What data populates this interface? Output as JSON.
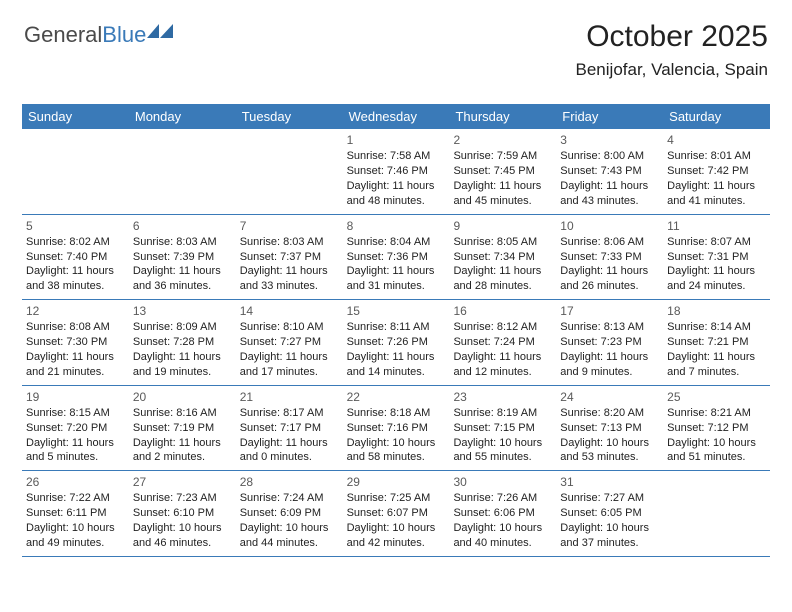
{
  "logo": {
    "text1": "General",
    "text2": "Blue"
  },
  "header": {
    "title": "October 2025",
    "location": "Benijofar, Valencia, Spain"
  },
  "colors": {
    "header_bg": "#3a7ab8",
    "header_fg": "#ffffff",
    "border": "#3a7ab8"
  },
  "daynames": [
    "Sunday",
    "Monday",
    "Tuesday",
    "Wednesday",
    "Thursday",
    "Friday",
    "Saturday"
  ],
  "weeks": [
    [
      {
        "day": "",
        "sunrise": "",
        "sunset": "",
        "daylight1": "",
        "daylight2": ""
      },
      {
        "day": "",
        "sunrise": "",
        "sunset": "",
        "daylight1": "",
        "daylight2": ""
      },
      {
        "day": "",
        "sunrise": "",
        "sunset": "",
        "daylight1": "",
        "daylight2": ""
      },
      {
        "day": "1",
        "sunrise": "Sunrise: 7:58 AM",
        "sunset": "Sunset: 7:46 PM",
        "daylight1": "Daylight: 11 hours",
        "daylight2": "and 48 minutes."
      },
      {
        "day": "2",
        "sunrise": "Sunrise: 7:59 AM",
        "sunset": "Sunset: 7:45 PM",
        "daylight1": "Daylight: 11 hours",
        "daylight2": "and 45 minutes."
      },
      {
        "day": "3",
        "sunrise": "Sunrise: 8:00 AM",
        "sunset": "Sunset: 7:43 PM",
        "daylight1": "Daylight: 11 hours",
        "daylight2": "and 43 minutes."
      },
      {
        "day": "4",
        "sunrise": "Sunrise: 8:01 AM",
        "sunset": "Sunset: 7:42 PM",
        "daylight1": "Daylight: 11 hours",
        "daylight2": "and 41 minutes."
      }
    ],
    [
      {
        "day": "5",
        "sunrise": "Sunrise: 8:02 AM",
        "sunset": "Sunset: 7:40 PM",
        "daylight1": "Daylight: 11 hours",
        "daylight2": "and 38 minutes."
      },
      {
        "day": "6",
        "sunrise": "Sunrise: 8:03 AM",
        "sunset": "Sunset: 7:39 PM",
        "daylight1": "Daylight: 11 hours",
        "daylight2": "and 36 minutes."
      },
      {
        "day": "7",
        "sunrise": "Sunrise: 8:03 AM",
        "sunset": "Sunset: 7:37 PM",
        "daylight1": "Daylight: 11 hours",
        "daylight2": "and 33 minutes."
      },
      {
        "day": "8",
        "sunrise": "Sunrise: 8:04 AM",
        "sunset": "Sunset: 7:36 PM",
        "daylight1": "Daylight: 11 hours",
        "daylight2": "and 31 minutes."
      },
      {
        "day": "9",
        "sunrise": "Sunrise: 8:05 AM",
        "sunset": "Sunset: 7:34 PM",
        "daylight1": "Daylight: 11 hours",
        "daylight2": "and 28 minutes."
      },
      {
        "day": "10",
        "sunrise": "Sunrise: 8:06 AM",
        "sunset": "Sunset: 7:33 PM",
        "daylight1": "Daylight: 11 hours",
        "daylight2": "and 26 minutes."
      },
      {
        "day": "11",
        "sunrise": "Sunrise: 8:07 AM",
        "sunset": "Sunset: 7:31 PM",
        "daylight1": "Daylight: 11 hours",
        "daylight2": "and 24 minutes."
      }
    ],
    [
      {
        "day": "12",
        "sunrise": "Sunrise: 8:08 AM",
        "sunset": "Sunset: 7:30 PM",
        "daylight1": "Daylight: 11 hours",
        "daylight2": "and 21 minutes."
      },
      {
        "day": "13",
        "sunrise": "Sunrise: 8:09 AM",
        "sunset": "Sunset: 7:28 PM",
        "daylight1": "Daylight: 11 hours",
        "daylight2": "and 19 minutes."
      },
      {
        "day": "14",
        "sunrise": "Sunrise: 8:10 AM",
        "sunset": "Sunset: 7:27 PM",
        "daylight1": "Daylight: 11 hours",
        "daylight2": "and 17 minutes."
      },
      {
        "day": "15",
        "sunrise": "Sunrise: 8:11 AM",
        "sunset": "Sunset: 7:26 PM",
        "daylight1": "Daylight: 11 hours",
        "daylight2": "and 14 minutes."
      },
      {
        "day": "16",
        "sunrise": "Sunrise: 8:12 AM",
        "sunset": "Sunset: 7:24 PM",
        "daylight1": "Daylight: 11 hours",
        "daylight2": "and 12 minutes."
      },
      {
        "day": "17",
        "sunrise": "Sunrise: 8:13 AM",
        "sunset": "Sunset: 7:23 PM",
        "daylight1": "Daylight: 11 hours",
        "daylight2": "and 9 minutes."
      },
      {
        "day": "18",
        "sunrise": "Sunrise: 8:14 AM",
        "sunset": "Sunset: 7:21 PM",
        "daylight1": "Daylight: 11 hours",
        "daylight2": "and 7 minutes."
      }
    ],
    [
      {
        "day": "19",
        "sunrise": "Sunrise: 8:15 AM",
        "sunset": "Sunset: 7:20 PM",
        "daylight1": "Daylight: 11 hours",
        "daylight2": "and 5 minutes."
      },
      {
        "day": "20",
        "sunrise": "Sunrise: 8:16 AM",
        "sunset": "Sunset: 7:19 PM",
        "daylight1": "Daylight: 11 hours",
        "daylight2": "and 2 minutes."
      },
      {
        "day": "21",
        "sunrise": "Sunrise: 8:17 AM",
        "sunset": "Sunset: 7:17 PM",
        "daylight1": "Daylight: 11 hours",
        "daylight2": "and 0 minutes."
      },
      {
        "day": "22",
        "sunrise": "Sunrise: 8:18 AM",
        "sunset": "Sunset: 7:16 PM",
        "daylight1": "Daylight: 10 hours",
        "daylight2": "and 58 minutes."
      },
      {
        "day": "23",
        "sunrise": "Sunrise: 8:19 AM",
        "sunset": "Sunset: 7:15 PM",
        "daylight1": "Daylight: 10 hours",
        "daylight2": "and 55 minutes."
      },
      {
        "day": "24",
        "sunrise": "Sunrise: 8:20 AM",
        "sunset": "Sunset: 7:13 PM",
        "daylight1": "Daylight: 10 hours",
        "daylight2": "and 53 minutes."
      },
      {
        "day": "25",
        "sunrise": "Sunrise: 8:21 AM",
        "sunset": "Sunset: 7:12 PM",
        "daylight1": "Daylight: 10 hours",
        "daylight2": "and 51 minutes."
      }
    ],
    [
      {
        "day": "26",
        "sunrise": "Sunrise: 7:22 AM",
        "sunset": "Sunset: 6:11 PM",
        "daylight1": "Daylight: 10 hours",
        "daylight2": "and 49 minutes."
      },
      {
        "day": "27",
        "sunrise": "Sunrise: 7:23 AM",
        "sunset": "Sunset: 6:10 PM",
        "daylight1": "Daylight: 10 hours",
        "daylight2": "and 46 minutes."
      },
      {
        "day": "28",
        "sunrise": "Sunrise: 7:24 AM",
        "sunset": "Sunset: 6:09 PM",
        "daylight1": "Daylight: 10 hours",
        "daylight2": "and 44 minutes."
      },
      {
        "day": "29",
        "sunrise": "Sunrise: 7:25 AM",
        "sunset": "Sunset: 6:07 PM",
        "daylight1": "Daylight: 10 hours",
        "daylight2": "and 42 minutes."
      },
      {
        "day": "30",
        "sunrise": "Sunrise: 7:26 AM",
        "sunset": "Sunset: 6:06 PM",
        "daylight1": "Daylight: 10 hours",
        "daylight2": "and 40 minutes."
      },
      {
        "day": "31",
        "sunrise": "Sunrise: 7:27 AM",
        "sunset": "Sunset: 6:05 PM",
        "daylight1": "Daylight: 10 hours",
        "daylight2": "and 37 minutes."
      },
      {
        "day": "",
        "sunrise": "",
        "sunset": "",
        "daylight1": "",
        "daylight2": ""
      }
    ]
  ]
}
